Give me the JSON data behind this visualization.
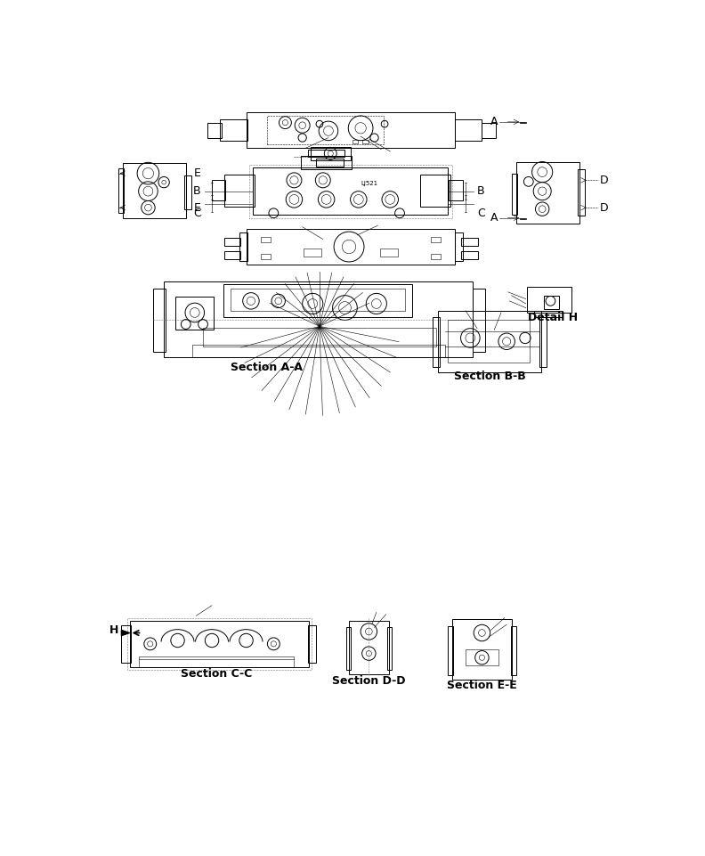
{
  "bg_color": "#ffffff",
  "line_color": "#000000",
  "fig_width": 7.92,
  "fig_height": 9.61,
  "dpi": 100,
  "labels": {
    "section_aa": "Section A-A",
    "section_bb": "Section B-B",
    "section_cc": "Section C-C",
    "section_dd": "Section D-D",
    "section_ee": "Section E-E",
    "detail_h": "Detail H",
    "A": "A",
    "B": "B",
    "C": "C",
    "D": "D",
    "E": "E",
    "H": "H",
    "lj521": "LJ521"
  },
  "font_size_section": 9,
  "font_size_label": 9,
  "lw_main": 0.7,
  "lw_thin": 0.4,
  "lw_thick": 1.2
}
